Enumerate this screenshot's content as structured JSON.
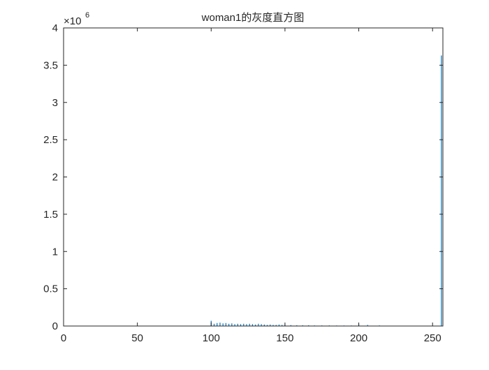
{
  "chart_data": {
    "type": "bar",
    "title": "woman1的灰度直方图",
    "xlabel": "",
    "ylabel": "",
    "xlim": [
      0,
      257
    ],
    "ylim": [
      0,
      4000000
    ],
    "y_exponent_label": "×10",
    "y_exponent_power": "6",
    "xticks": [
      0,
      50,
      100,
      150,
      200,
      250
    ],
    "yticks": [
      0,
      0.5,
      1,
      1.5,
      2,
      2.5,
      3,
      3.5,
      4
    ],
    "ytick_labels": [
      "0",
      "0.5",
      "1",
      "1.5",
      "2",
      "2.5",
      "3",
      "3.5",
      "4"
    ],
    "grid": false,
    "bar_color": "#0072bd",
    "x": [
      100,
      102,
      104,
      106,
      108,
      110,
      112,
      114,
      116,
      118,
      120,
      122,
      124,
      126,
      128,
      130,
      132,
      134,
      136,
      138,
      140,
      142,
      144,
      146,
      148,
      150,
      154,
      158,
      162,
      166,
      170,
      175,
      180,
      185,
      190,
      195,
      200,
      206,
      214,
      222,
      234,
      256
    ],
    "values": [
      70000,
      30000,
      40000,
      45000,
      35000,
      40000,
      30000,
      35000,
      25000,
      30000,
      25000,
      30000,
      25000,
      30000,
      25000,
      20000,
      30000,
      25000,
      20000,
      15000,
      20000,
      15000,
      15000,
      20000,
      15000,
      20000,
      12000,
      10000,
      10000,
      10000,
      8000,
      8000,
      8000,
      7000,
      7000,
      7000,
      25000,
      15000,
      8000,
      5000,
      5000,
      3630000
    ]
  }
}
